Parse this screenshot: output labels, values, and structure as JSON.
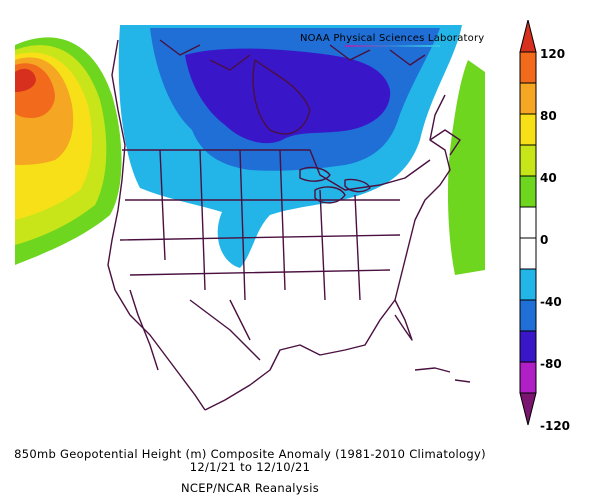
{
  "credit": "NOAA Physical Sciences Laboratory",
  "caption": {
    "line1": "850mb Geopotential Height (m) Composite Anomaly (1981-2010 Climatology)",
    "line2": "12/1/21  to 12/10/21",
    "line3": "NCEP/NCAR Reanalysis"
  },
  "colorbar": {
    "ticks": [
      "120",
      "80",
      "40",
      "0",
      "-40",
      "-80",
      "-120"
    ],
    "colors": [
      "#d7301f",
      "#f26b1d",
      "#f5a623",
      "#f7e018",
      "#c8e51a",
      "#6fd61f",
      "#ffffff",
      "#ffffff",
      "#23b5e8",
      "#1f6fd6",
      "#3a16c9",
      "#b01ec6",
      "#7a1570"
    ]
  }
}
